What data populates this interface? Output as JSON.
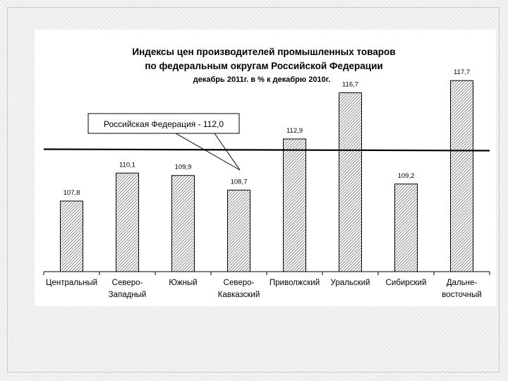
{
  "chart_data": {
    "type": "bar",
    "title_lines": [
      "Индексы цен производителей промышленных товаров",
      "по федеральным округам Российской Федерации",
      "декабрь 2011г. в % к декабрю 2010г."
    ],
    "categories": [
      [
        "Центральный"
      ],
      [
        "Северо-",
        "Западный"
      ],
      [
        "Южный"
      ],
      [
        "Северо-",
        "Кавказский"
      ],
      [
        "Приволжский"
      ],
      [
        "Уральский"
      ],
      [
        "Сибирский"
      ],
      [
        "Дальне-",
        "восточный"
      ]
    ],
    "values": [
      107.8,
      110.1,
      109.9,
      108.7,
      112.9,
      116.7,
      109.2,
      117.7
    ],
    "value_labels": [
      "107,8",
      "110,1",
      "109,9",
      "108,7",
      "112,9",
      "116,7",
      "109,2",
      "117,7"
    ],
    "reference_line": {
      "value": 112.0,
      "label": "Российская Федерация - 112,0"
    },
    "ylim": [
      102,
      120
    ],
    "xlabel": "",
    "ylabel": "",
    "grid": false,
    "legend": "none",
    "bar_pattern": "diagonal-hatch",
    "colors": {
      "bar_stroke": "#000000",
      "hatch": "#555555",
      "panel": "#ffffff"
    }
  }
}
